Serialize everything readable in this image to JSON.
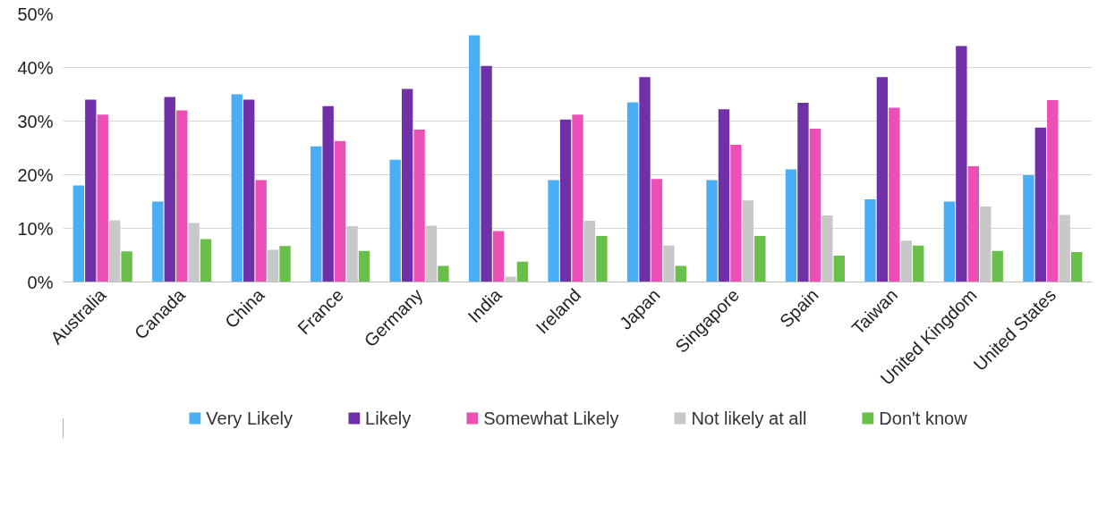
{
  "chart_data": {
    "type": "bar",
    "categories": [
      "Australia",
      "Canada",
      "China",
      "France",
      "Germany",
      "India",
      "Ireland",
      "Japan",
      "Singapore",
      "Spain",
      "Taiwan",
      "United Kingdom",
      "United States"
    ],
    "series": [
      {
        "name": "Very Likely",
        "color": "#4aaef5",
        "values": [
          18,
          15,
          35,
          25.3,
          22.8,
          46,
          19,
          33.5,
          19,
          21,
          15.4,
          15,
          19.9
        ]
      },
      {
        "name": "Likely",
        "color": "#7030a8",
        "values": [
          34,
          34.5,
          34,
          32.8,
          36,
          40.3,
          30.3,
          38.2,
          32.2,
          33.4,
          38.2,
          44,
          28.8
        ]
      },
      {
        "name": "Somewhat Likely",
        "color": "#ec4fb5",
        "values": [
          31.2,
          32,
          19,
          26.3,
          28.4,
          9.5,
          31.2,
          19.2,
          25.6,
          28.6,
          32.5,
          21.6,
          33.9
        ]
      },
      {
        "name": "Not likely at all",
        "color": "#c8c8c8",
        "values": [
          11.5,
          11,
          6,
          10.4,
          10.5,
          1,
          11.4,
          6.8,
          15.2,
          12.4,
          7.7,
          14.1,
          12.5
        ]
      },
      {
        "name": "Don't know",
        "color": "#6abf4b",
        "values": [
          5.7,
          8,
          6.7,
          5.8,
          3,
          3.8,
          8.6,
          3,
          8.6,
          4.9,
          6.8,
          5.8,
          5.6
        ]
      }
    ],
    "ylim": [
      0,
      50
    ],
    "yticks": [
      {
        "value": 0,
        "label": "0%"
      },
      {
        "value": 10,
        "label": "10%"
      },
      {
        "value": 20,
        "label": "20%"
      },
      {
        "value": 30,
        "label": "30%"
      },
      {
        "value": 40,
        "label": "40%"
      },
      {
        "value": 50,
        "label": "50%"
      }
    ],
    "grid": "y",
    "legend": "bottom"
  }
}
